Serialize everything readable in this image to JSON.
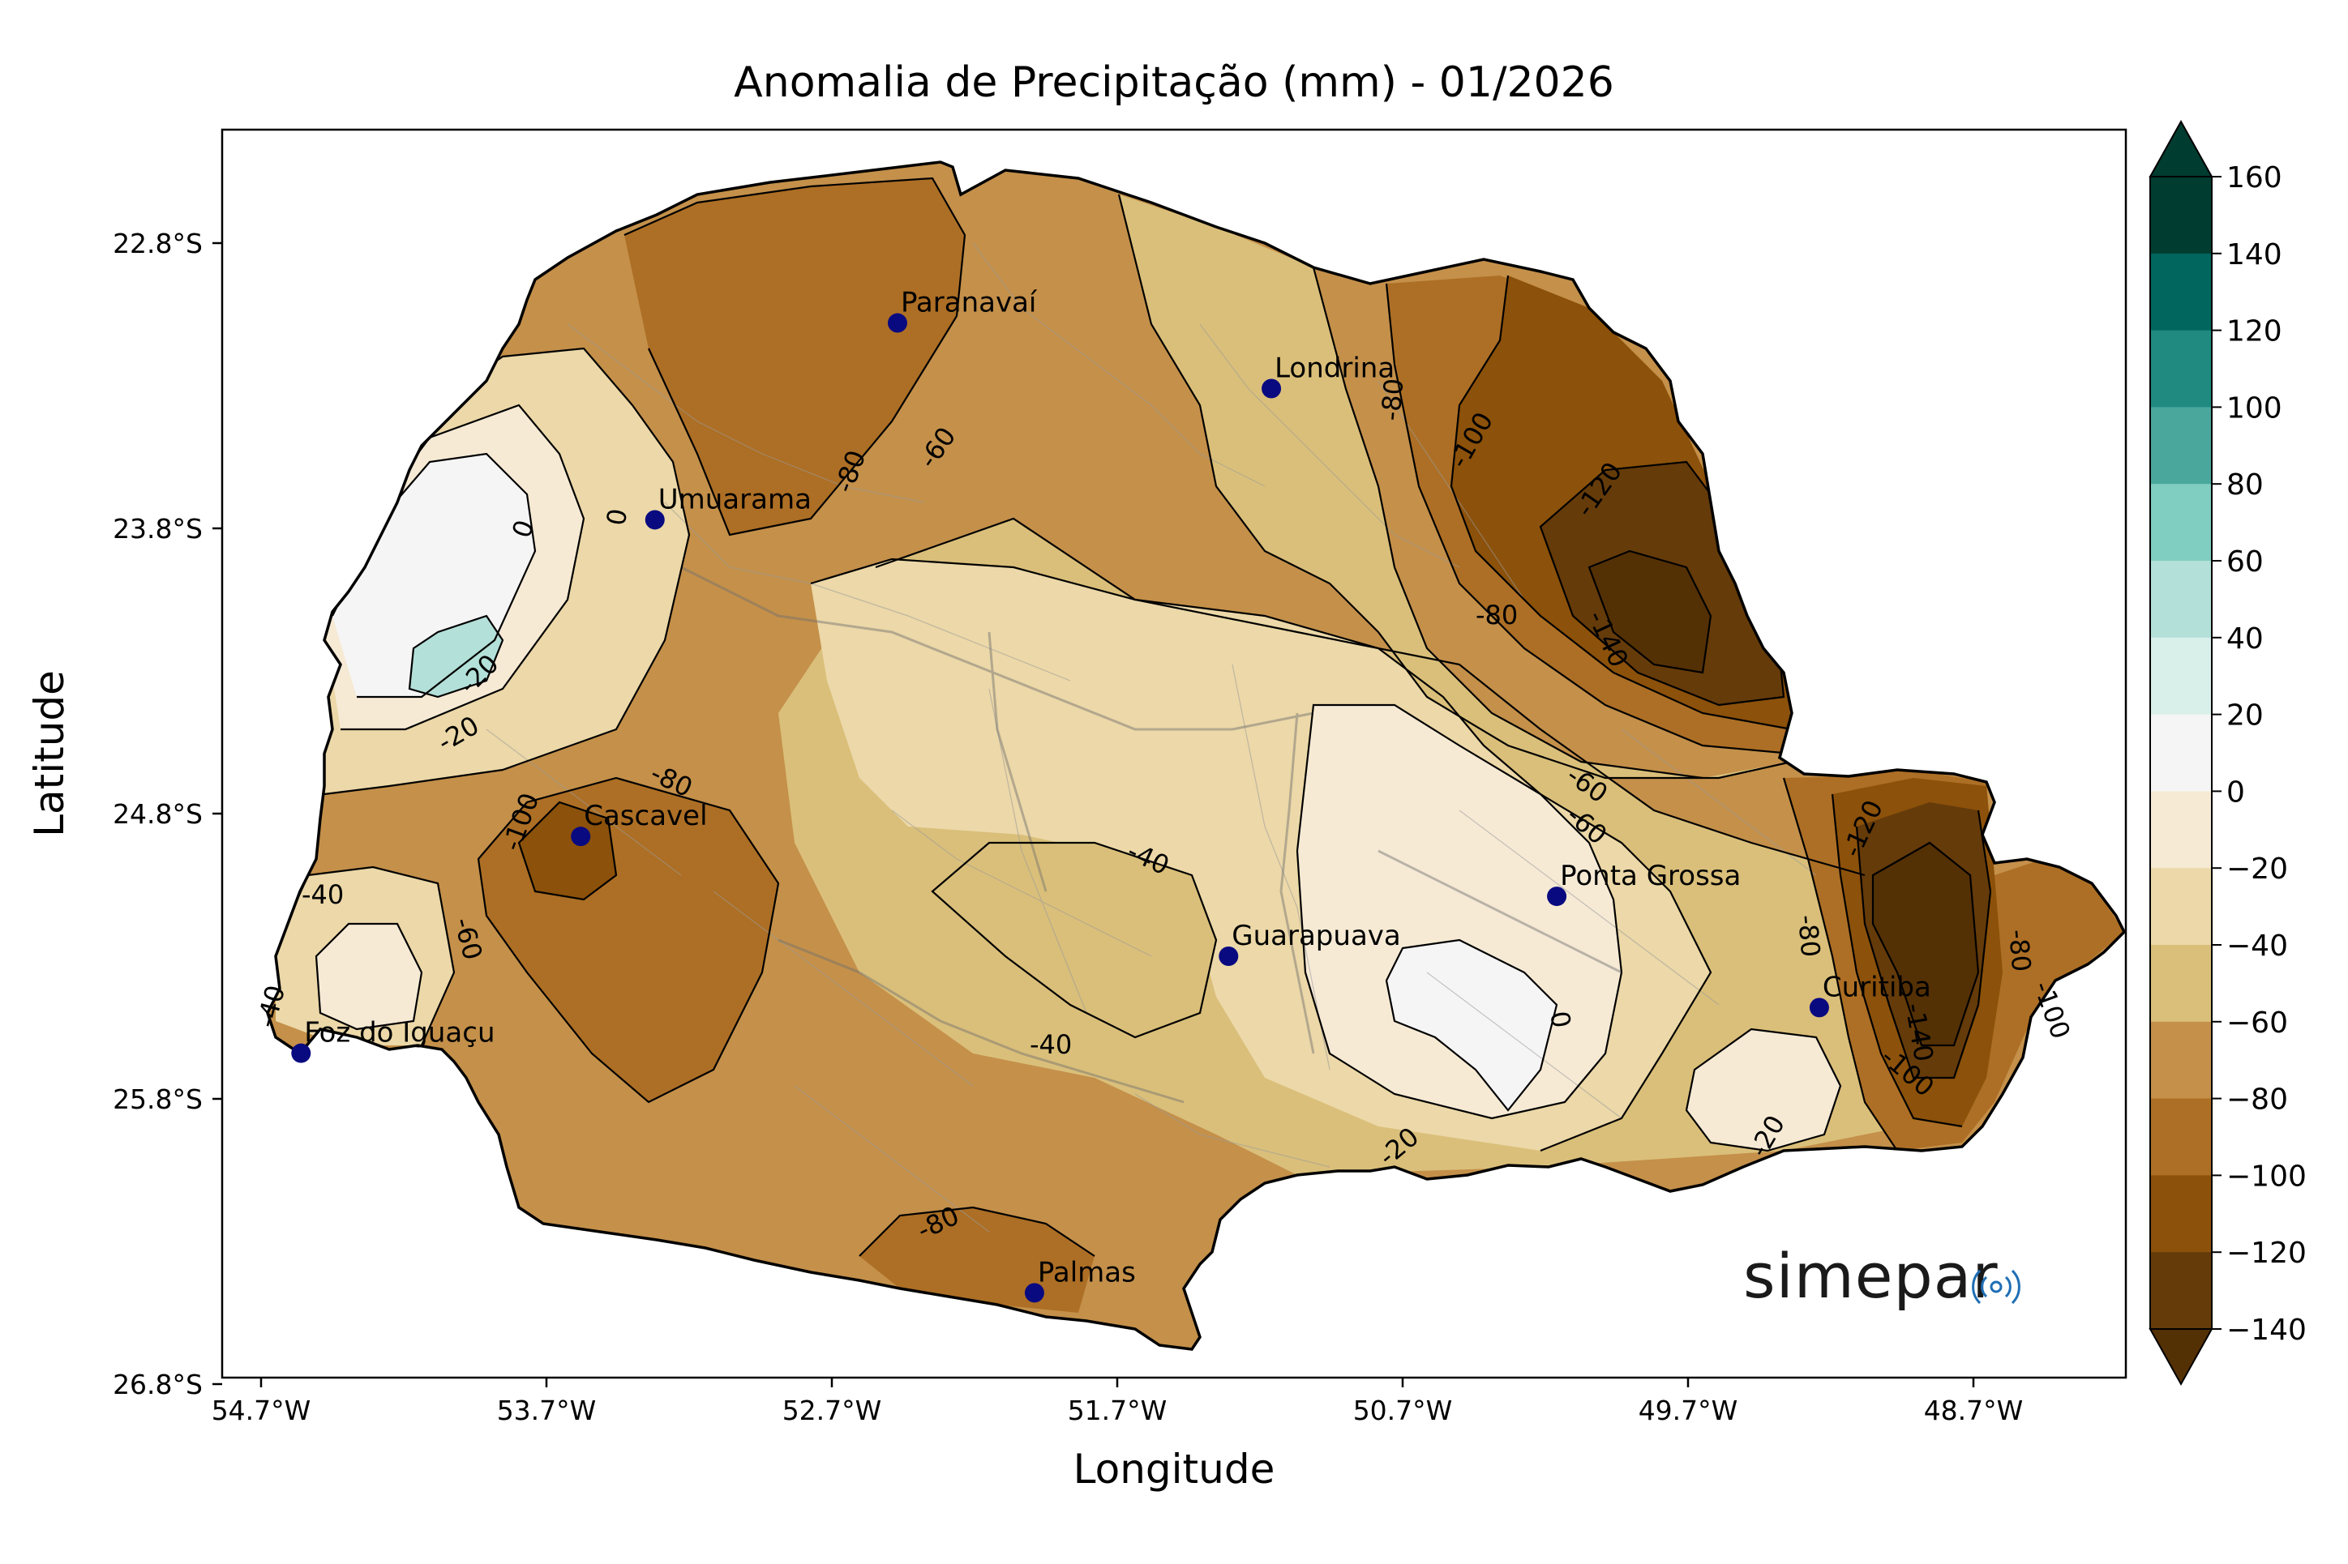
{
  "title": "Anomalia de Precipitação (mm) - 01/2026",
  "axes": {
    "xlabel": "Longitude",
    "ylabel": "Latitude",
    "x_ticks": [
      "54.7°W",
      "53.7°W",
      "52.7°W",
      "51.7°W",
      "50.7°W",
      "49.7°W",
      "48.7°W"
    ],
    "y_ticks": [
      "22.8°S",
      "23.8°S",
      "24.8°S",
      "25.8°S",
      "26.8°S"
    ]
  },
  "colorbar": {
    "labels": [
      "160",
      "140",
      "120",
      "100",
      "80",
      "60",
      "40",
      "20",
      "0",
      "−20",
      "−40",
      "−60",
      "−80",
      "−100",
      "−120",
      "−140"
    ],
    "colors_top_to_bottom": [
      "#003c30",
      "#01665e",
      "#208a80",
      "#4aa79c",
      "#80cdc1",
      "#b3e0d8",
      "#d8efea",
      "#f5f5f5",
      "#f6ead5",
      "#ecd8a8",
      "#dabf7a",
      "#c4904a",
      "#ad6f25",
      "#8c510a",
      "#653b0a"
    ],
    "extend_top_color": "#003c30",
    "extend_bottom_color": "#543005"
  },
  "cities": [
    {
      "name": "Paranavaí",
      "lon": -52.47,
      "lat": -23.08
    },
    {
      "name": "Londrina",
      "lon": -51.16,
      "lat": -23.31
    },
    {
      "name": "Umuarama",
      "lon": -53.32,
      "lat": -23.77
    },
    {
      "name": "Cascavel",
      "lon": -53.58,
      "lat": -24.88
    },
    {
      "name": "Ponta Grossa",
      "lon": -50.16,
      "lat": -25.09
    },
    {
      "name": "Guarapuava",
      "lon": -51.31,
      "lat": -25.3
    },
    {
      "name": "Curitiba",
      "lon": -49.24,
      "lat": -25.48
    },
    {
      "name": "Foz do Iguaçu",
      "lon": -54.56,
      "lat": -25.64
    },
    {
      "name": "Palmas",
      "lon": -51.99,
      "lat": -26.48
    }
  ],
  "contour_labels": [
    "0",
    "-20",
    "-20",
    "0",
    "-80",
    "-60",
    "-40",
    "-60",
    "-80",
    "-100",
    "-60",
    "-40",
    "-40",
    "-80",
    "-80",
    "-100",
    "-120",
    "-140",
    "-60",
    "-20",
    "0",
    "-80",
    "-120",
    "-140",
    "-80",
    "-100",
    "-100",
    "-20",
    "-80",
    "-40"
  ],
  "logo": {
    "text": "simepar"
  }
}
